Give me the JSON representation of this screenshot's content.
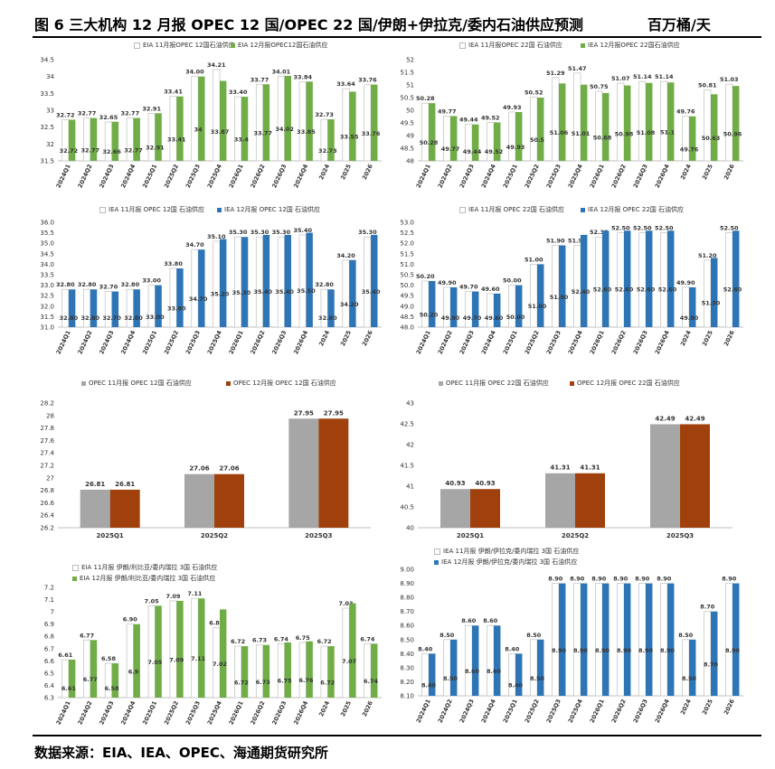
{
  "header": {
    "title": "图 6 三大机构 12 月报 OPEC 12 国/OPEC 22 国/伊朗+伊拉克/委内石油供应预测",
    "unit": "百万桶/天"
  },
  "footer": {
    "source": "数据来源：EIA、IEA、OPEC、海通期货研究所"
  },
  "colors": {
    "white": "#ffffff",
    "green": "#70ad47",
    "blue": "#2e75b6",
    "gray": "#a6a6a6",
    "brown": "#a0410d"
  },
  "chart_data": [
    {
      "type": "bar",
      "categories": [
        "2024Q1",
        "2024Q2",
        "2024Q3",
        "2024Q4",
        "2025Q1",
        "2025Q2",
        "2025Q3",
        "2025Q4",
        "2026Q1",
        "2026Q2",
        "2026Q3",
        "2026Q4",
        "2024",
        "2025",
        "2026"
      ],
      "series": [
        {
          "name": "EIA 11月报OPEC 12国石油供应",
          "color": "white",
          "values": [
            32.72,
            32.77,
            32.65,
            32.77,
            32.91,
            33.41,
            34.0,
            34.21,
            33.4,
            33.77,
            34.01,
            33.84,
            32.73,
            33.64,
            33.76
          ],
          "labels": [
            "32.72",
            "32.77",
            "32.65",
            "32.77",
            "32.91",
            "33.41",
            "34.00",
            "34.21",
            "33.40",
            "33.77",
            "34.01",
            "33.84",
            "32.73",
            "33.64",
            "33.76"
          ]
        },
        {
          "name": "EIA 12月报OPEC12国石油供应",
          "color": "green",
          "values": [
            32.72,
            32.77,
            32.66,
            32.77,
            32.91,
            33.41,
            34.0,
            33.87,
            33.4,
            33.77,
            34.02,
            33.85,
            32.73,
            33.55,
            33.76
          ],
          "labels": [
            "32.72",
            "32.77",
            "32.66",
            "32.77",
            "32.91",
            "33.41",
            "34",
            "33.87",
            "33.4",
            "33.77",
            "34.02",
            "33.85",
            "32.73",
            "33.55",
            "33.76"
          ]
        }
      ],
      "ylim": [
        31.5,
        34.5
      ],
      "yticks": [
        "31.5",
        "32",
        "32.5",
        "33",
        "33.5",
        "34",
        "34.5"
      ],
      "grid": false,
      "legend": "top"
    },
    {
      "type": "bar",
      "categories": [
        "2024Q1",
        "2024Q2",
        "2024Q3",
        "2024Q4",
        "2025Q1",
        "2025Q2",
        "2025Q3",
        "2025Q4",
        "2026Q1",
        "2026Q2",
        "2026Q3",
        "2026Q4",
        "2024",
        "2025",
        "2026"
      ],
      "series": [
        {
          "name": "IEA 11月报OPEC 22国 石油供应",
          "color": "white",
          "values": [
            50.28,
            49.77,
            49.44,
            49.52,
            49.93,
            50.52,
            51.29,
            51.47,
            50.75,
            51.07,
            51.14,
            51.14,
            49.76,
            50.81,
            51.03
          ],
          "labels": [
            "50.28",
            "49.77",
            "49.44",
            "49.52",
            "49.93",
            "50.52",
            "51.29",
            "51.47",
            "50.75",
            "51.07",
            "51.14",
            "51.14",
            "49.76",
            "50.81",
            "51.03"
          ]
        },
        {
          "name": "IEA 12月报OPEC 22国石油供应",
          "color": "green",
          "values": [
            50.28,
            49.77,
            49.44,
            49.52,
            49.93,
            50.5,
            51.06,
            51.01,
            50.68,
            50.98,
            51.08,
            51.1,
            49.76,
            50.63,
            50.96
          ],
          "labels": [
            "50.28",
            "49.77",
            "49.44",
            "49.52",
            "49.93",
            "50.5",
            "51.06",
            "51.01",
            "50.68",
            "50.98",
            "51.08",
            "51.1",
            "49.76",
            "50.63",
            "50.96"
          ]
        }
      ],
      "ylim": [
        48,
        52
      ],
      "yticks": [
        "48",
        "48.5",
        "49",
        "49.5",
        "50",
        "50.5",
        "51",
        "51.5",
        "52"
      ],
      "grid": false,
      "legend": "top"
    },
    {
      "type": "bar",
      "categories": [
        "2024Q1",
        "2024Q2",
        "2024Q3",
        "2024Q4",
        "2025Q1",
        "2025Q2",
        "2025Q3",
        "2025Q4",
        "2026Q1",
        "2026Q2",
        "2026Q3",
        "2026Q4",
        "2024",
        "2025",
        "2026"
      ],
      "series": [
        {
          "name": "IEA 11月报 OPEC 12国 石油供应",
          "color": "white",
          "values": [
            32.8,
            32.8,
            32.7,
            32.8,
            33.0,
            33.8,
            34.7,
            35.1,
            35.3,
            35.3,
            35.3,
            35.4,
            32.8,
            34.2,
            35.3
          ],
          "labels": [
            "32.80",
            "32.80",
            "32.70",
            "32.80",
            "33.00",
            "33.80",
            "34.70",
            "35.10",
            "35.30",
            "35.30",
            "35.30",
            "35.40",
            "32.80",
            "34.20",
            "35.30"
          ]
        },
        {
          "name": "IEA 12月报 OPEC 12国 石油供应",
          "color": "blue",
          "values": [
            32.8,
            32.8,
            32.7,
            32.8,
            33.0,
            33.8,
            34.7,
            35.2,
            35.3,
            35.4,
            35.4,
            35.5,
            32.8,
            34.2,
            35.4
          ],
          "labels": [
            "32.80",
            "32.80",
            "32.70",
            "32.80",
            "33.00",
            "33.80",
            "34.70",
            "35.20",
            "35.30",
            "35.40",
            "35.40",
            "35.50",
            "32.80",
            "34.20",
            "35.40"
          ]
        }
      ],
      "ylim": [
        31.0,
        36.0
      ],
      "yticks": [
        "31.0",
        "31.5",
        "32.0",
        "32.5",
        "33.0",
        "33.5",
        "34.0",
        "34.5",
        "35.0",
        "35.5",
        "36.0"
      ],
      "grid": false,
      "legend": "top"
    },
    {
      "type": "bar",
      "categories": [
        "2024Q1",
        "2024Q2",
        "2024Q3",
        "2024Q4",
        "2025Q1",
        "2025Q2",
        "2025Q3",
        "2025Q4",
        "2026Q1",
        "2026Q2",
        "2026Q3",
        "2026Q4",
        "2024",
        "2025",
        "2026"
      ],
      "series": [
        {
          "name": "IEA 11月报 OPEC 22国 石油供应",
          "color": "white",
          "values": [
            50.2,
            49.9,
            49.7,
            49.6,
            50.0,
            51.0,
            51.9,
            51.9,
            52.3,
            52.5,
            52.5,
            52.5,
            49.9,
            51.2,
            52.5
          ],
          "labels": [
            "50.20",
            "49.90",
            "49.70",
            "49.60",
            "50.00",
            "51.00",
            "51.90",
            "51.90",
            "52.30",
            "52.50",
            "52.50",
            "52.50",
            "49.90",
            "51.20",
            "52.50"
          ]
        },
        {
          "name": "IEA 12月报 OPEC 22国 石油供应",
          "color": "blue",
          "values": [
            50.2,
            49.9,
            49.7,
            49.6,
            50.0,
            51.0,
            51.9,
            52.4,
            52.6,
            52.6,
            52.6,
            52.6,
            49.9,
            51.3,
            52.6
          ],
          "labels": [
            "50.20",
            "49.90",
            "49.70",
            "49.60",
            "50.00",
            "51.00",
            "51.90",
            "52.40",
            "52.60",
            "52.60",
            "52.60",
            "52.60",
            "49.90",
            "51.30",
            "52.60"
          ]
        }
      ],
      "ylim": [
        48.0,
        53.0
      ],
      "yticks": [
        "48.0",
        "48.5",
        "49.0",
        "49.5",
        "50.0",
        "50.5",
        "51.0",
        "51.5",
        "52.0",
        "52.5",
        "53.0"
      ],
      "grid": false,
      "legend": "top"
    },
    {
      "type": "bar",
      "categories": [
        "2025Q1",
        "2025Q2",
        "2025Q3"
      ],
      "series": [
        {
          "name": "OPEC 11月报 OPEC 12国 石油供应",
          "color": "gray",
          "values": [
            26.81,
            27.06,
            27.95
          ],
          "labels": [
            "26.81",
            "27.06",
            "27.95"
          ]
        },
        {
          "name": "OPEC 12月报 OPEC 12国 石油供应",
          "color": "brown",
          "values": [
            26.81,
            27.06,
            27.95
          ],
          "labels": [
            "26.81",
            "27.06",
            "27.95"
          ]
        }
      ],
      "ylim": [
        26.2,
        28.2
      ],
      "yticks": [
        "26.2",
        "26.4",
        "26.6",
        "26.8",
        "27",
        "27.2",
        "27.4",
        "27.6",
        "27.8",
        "28",
        "28.2"
      ],
      "grid": false,
      "legend": "top"
    },
    {
      "type": "bar",
      "categories": [
        "2025Q1",
        "2025Q2",
        "2025Q3"
      ],
      "series": [
        {
          "name": "OPEC 11月报 OPEC 22国 石油供应",
          "color": "gray",
          "values": [
            40.93,
            41.31,
            42.49
          ],
          "labels": [
            "40.93",
            "41.31",
            "42.49"
          ]
        },
        {
          "name": "OPEC 12月报 OPEC 22国 石油供应",
          "color": "brown",
          "values": [
            40.93,
            41.31,
            42.49
          ],
          "labels": [
            "40.93",
            "41.31",
            "42.49"
          ]
        }
      ],
      "ylim": [
        40,
        43
      ],
      "yticks": [
        "40",
        "40.5",
        "41",
        "41.5",
        "42",
        "42.5",
        "43"
      ],
      "grid": false,
      "legend": "top"
    },
    {
      "type": "bar",
      "categories": [
        "2024Q1",
        "2024Q2",
        "2024Q3",
        "2024Q4",
        "2025Q1",
        "2025Q2",
        "2025Q3",
        "2025Q4",
        "2026Q1",
        "2026Q2",
        "2026Q3",
        "2026Q4",
        "2024",
        "2025",
        "2026"
      ],
      "series": [
        {
          "name": "EIA 11月报 伊朗/利比亚/委内瑞拉 3国 石油供应",
          "color": "white",
          "values": [
            6.61,
            6.77,
            6.58,
            6.9,
            7.05,
            7.09,
            7.11,
            6.87,
            6.72,
            6.73,
            6.74,
            6.75,
            6.72,
            7.03,
            6.74
          ],
          "labels": [
            "6.61",
            "6.77",
            "6.58",
            "6.90",
            "7.05",
            "7.09",
            "7.11",
            "6.87",
            "6.72",
            "6.73",
            "6.74",
            "6.75",
            "6.72",
            "7.03",
            "6.74"
          ]
        },
        {
          "name": "EIA 12月报 伊朗/利比亚/委内瑞拉 3国 石油供应",
          "color": "green",
          "values": [
            6.61,
            6.77,
            6.58,
            6.9,
            7.05,
            7.09,
            7.11,
            7.02,
            6.72,
            6.73,
            6.75,
            6.76,
            6.72,
            7.07,
            6.74
          ],
          "labels": [
            "6.61",
            "6.77",
            "6.58",
            "6.9",
            "7.05",
            "7.09",
            "7.11",
            "7.02",
            "6.72",
            "6.73",
            "6.75",
            "6.76",
            "6.72",
            "7.07",
            "6.74"
          ]
        }
      ],
      "ylim": [
        6.3,
        7.2
      ],
      "yticks": [
        "6.3",
        "6.4",
        "6.5",
        "6.6",
        "6.7",
        "6.8",
        "6.9",
        "7",
        "7.1",
        "7.2"
      ],
      "grid": false,
      "legend": "top"
    },
    {
      "type": "bar",
      "categories": [
        "2024Q1",
        "2024Q2",
        "2024Q3",
        "2024Q4",
        "2025Q1",
        "2025Q2",
        "2025Q3",
        "2025Q4",
        "2026Q1",
        "2026Q2",
        "2026Q3",
        "2026Q4",
        "2024",
        "2025",
        "2026"
      ],
      "series": [
        {
          "name": "IEA 11月报 伊朗/伊拉克/委内瑞拉 3国 石油供应",
          "color": "white",
          "values": [
            8.4,
            8.5,
            8.6,
            8.6,
            8.4,
            8.5,
            8.9,
            8.9,
            8.9,
            8.9,
            8.9,
            8.9,
            8.5,
            8.7,
            8.9
          ],
          "labels": [
            "8.40",
            "8.50",
            "8.60",
            "8.60",
            "8.40",
            "8.50",
            "8.90",
            "8.90",
            "8.90",
            "8.90",
            "8.90",
            "8.90",
            "8.50",
            "8.70",
            "8.90"
          ]
        },
        {
          "name": "IEA 12月报 伊朗/伊拉克/委内瑞拉 3国 石油供应",
          "color": "blue",
          "values": [
            8.4,
            8.5,
            8.6,
            8.6,
            8.4,
            8.5,
            8.9,
            8.9,
            8.9,
            8.9,
            8.9,
            8.9,
            8.5,
            8.7,
            8.9
          ],
          "labels": [
            "8.40",
            "8.50",
            "8.60",
            "8.60",
            "8.40",
            "8.50",
            "8.90",
            "8.90",
            "8.90",
            "8.90",
            "8.90",
            "8.90",
            "8.50",
            "8.70",
            "8.90"
          ]
        }
      ],
      "ylim": [
        8.1,
        9.0
      ],
      "yticks": [
        "8.10",
        "8.20",
        "8.30",
        "8.40",
        "8.50",
        "8.60",
        "8.70",
        "8.80",
        "8.90",
        "9.00"
      ],
      "grid": false,
      "legend": "top"
    }
  ]
}
